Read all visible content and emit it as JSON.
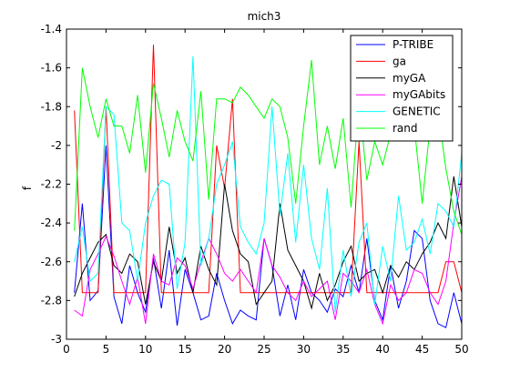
{
  "chart_data": {
    "type": "line",
    "title": "mich3",
    "xlabel": "",
    "ylabel": "f",
    "xlim": [
      0,
      50
    ],
    "ylim": [
      -3,
      -1.4
    ],
    "xticks": [
      0,
      5,
      10,
      15,
      20,
      25,
      30,
      35,
      40,
      45,
      50
    ],
    "yticks": [
      -1.4,
      -1.6,
      -1.8,
      -2,
      -2.2,
      -2.4,
      -2.6,
      -2.8,
      -3
    ],
    "grid": false,
    "legend_position": "top-right",
    "series": [
      {
        "name": "P-TRIBE",
        "color": "#0000ff",
        "x": [
          1,
          2,
          3,
          4,
          5,
          6,
          7,
          8,
          9,
          10,
          11,
          12,
          13,
          14,
          15,
          16,
          17,
          18,
          19,
          20,
          21,
          22,
          23,
          24,
          25,
          26,
          27,
          28,
          29,
          30,
          31,
          32,
          33,
          34,
          35,
          36,
          37,
          38,
          39,
          40,
          41,
          42,
          43,
          44,
          45,
          46,
          47,
          48,
          49,
          50
        ],
        "values": [
          -2.76,
          -2.3,
          -2.8,
          -2.75,
          -2.0,
          -2.78,
          -2.92,
          -2.62,
          -2.76,
          -2.86,
          -2.58,
          -2.84,
          -2.54,
          -2.93,
          -2.64,
          -2.76,
          -2.9,
          -2.88,
          -2.66,
          -2.8,
          -2.92,
          -2.85,
          -2.88,
          -2.9,
          -2.48,
          -2.62,
          -2.88,
          -2.72,
          -2.9,
          -2.64,
          -2.76,
          -2.8,
          -2.86,
          -2.74,
          -2.78,
          -2.62,
          -2.76,
          -2.48,
          -2.8,
          -2.9,
          -2.62,
          -2.84,
          -2.7,
          -2.44,
          -2.48,
          -2.8,
          -2.92,
          -2.94,
          -2.76,
          -2.92
        ]
      },
      {
        "name": "ga",
        "color": "#ff0000",
        "x": [
          1,
          2,
          3,
          4,
          5,
          6,
          7,
          8,
          9,
          10,
          11,
          12,
          13,
          14,
          15,
          16,
          17,
          18,
          19,
          20,
          21,
          22,
          23,
          24,
          25,
          26,
          27,
          28,
          29,
          30,
          31,
          32,
          33,
          34,
          35,
          36,
          37,
          38,
          39,
          40,
          41,
          42,
          43,
          44,
          45,
          46,
          47,
          48,
          49,
          50
        ],
        "values": [
          -1.82,
          -2.76,
          -2.76,
          -2.76,
          -1.8,
          -2.76,
          -2.76,
          -2.76,
          -2.76,
          -2.76,
          -1.48,
          -2.76,
          -2.76,
          -2.76,
          -2.76,
          -2.76,
          -2.76,
          -2.76,
          -2.0,
          -2.22,
          -1.76,
          -2.76,
          -2.76,
          -2.76,
          -2.76,
          -2.76,
          -2.76,
          -2.76,
          -2.76,
          -2.76,
          -2.76,
          -2.76,
          -2.76,
          -2.76,
          -2.76,
          -2.76,
          -1.98,
          -2.76,
          -2.76,
          -2.76,
          -2.76,
          -2.76,
          -2.76,
          -2.76,
          -2.76,
          -2.76,
          -2.76,
          -2.6,
          -2.6,
          -2.76
        ]
      },
      {
        "name": "myGA",
        "color": "#000000",
        "x": [
          1,
          2,
          3,
          4,
          5,
          6,
          7,
          8,
          9,
          10,
          11,
          12,
          13,
          14,
          15,
          16,
          17,
          18,
          19,
          20,
          21,
          22,
          23,
          24,
          25,
          26,
          27,
          28,
          29,
          30,
          31,
          32,
          33,
          34,
          35,
          36,
          37,
          38,
          39,
          40,
          41,
          42,
          43,
          44,
          45,
          46,
          47,
          48,
          49,
          50
        ],
        "values": [
          -2.78,
          -2.66,
          -2.58,
          -2.5,
          -2.46,
          -2.62,
          -2.66,
          -2.56,
          -2.6,
          -2.82,
          -2.6,
          -2.7,
          -2.42,
          -2.66,
          -2.58,
          -2.76,
          -2.52,
          -2.64,
          -2.72,
          -2.2,
          -2.44,
          -2.56,
          -2.6,
          -2.82,
          -2.76,
          -2.7,
          -2.3,
          -2.54,
          -2.62,
          -2.7,
          -2.84,
          -2.66,
          -2.8,
          -2.72,
          -2.6,
          -2.52,
          -2.7,
          -2.66,
          -2.64,
          -2.76,
          -2.62,
          -2.68,
          -2.6,
          -2.64,
          -2.56,
          -2.5,
          -2.4,
          -2.48,
          -2.16,
          -2.42
        ]
      },
      {
        "name": "myGAbits",
        "color": "#ff00ff",
        "x": [
          1,
          2,
          3,
          4,
          5,
          6,
          7,
          8,
          9,
          10,
          11,
          12,
          13,
          14,
          15,
          16,
          17,
          18,
          19,
          20,
          21,
          22,
          23,
          24,
          25,
          26,
          27,
          28,
          29,
          30,
          31,
          32,
          33,
          34,
          35,
          36,
          37,
          38,
          39,
          40,
          41,
          42,
          43,
          44,
          45,
          46,
          47,
          48,
          49,
          50
        ],
        "values": [
          -2.85,
          -2.88,
          -2.64,
          -2.56,
          -2.47,
          -2.57,
          -2.7,
          -2.82,
          -2.68,
          -2.92,
          -2.56,
          -2.7,
          -2.72,
          -2.58,
          -2.62,
          -2.74,
          -2.6,
          -2.48,
          -2.56,
          -2.66,
          -2.7,
          -2.64,
          -2.7,
          -2.76,
          -2.48,
          -2.62,
          -2.68,
          -2.76,
          -2.8,
          -2.7,
          -2.78,
          -2.74,
          -2.7,
          -2.9,
          -2.66,
          -2.7,
          -2.76,
          -2.64,
          -2.82,
          -2.92,
          -2.72,
          -2.8,
          -2.76,
          -2.64,
          -2.66,
          -2.76,
          -2.82,
          -2.7,
          -2.4,
          -2.16
        ]
      },
      {
        "name": "GENETIC",
        "color": "#00ffff",
        "x": [
          1,
          2,
          3,
          4,
          5,
          6,
          7,
          8,
          9,
          10,
          11,
          12,
          13,
          14,
          15,
          16,
          17,
          18,
          19,
          20,
          21,
          22,
          23,
          24,
          25,
          26,
          27,
          28,
          29,
          30,
          31,
          32,
          33,
          34,
          35,
          36,
          37,
          38,
          39,
          40,
          41,
          42,
          43,
          44,
          45,
          46,
          47,
          48,
          49,
          50
        ],
        "values": [
          -2.6,
          -2.42,
          -2.7,
          -2.66,
          -1.8,
          -1.84,
          -2.4,
          -2.44,
          -2.7,
          -2.4,
          -2.26,
          -2.18,
          -2.2,
          -2.74,
          -2.5,
          -1.54,
          -2.62,
          -2.48,
          -2.2,
          -2.1,
          -1.98,
          -2.42,
          -2.5,
          -2.56,
          -2.4,
          -1.8,
          -2.36,
          -2.04,
          -2.5,
          -2.1,
          -2.48,
          -2.64,
          -2.22,
          -2.86,
          -2.54,
          -2.78,
          -2.5,
          -2.4,
          -2.82,
          -2.52,
          -2.7,
          -2.26,
          -2.54,
          -2.5,
          -2.38,
          -2.56,
          -2.3,
          -2.34,
          -2.42,
          -2.04
        ]
      },
      {
        "name": "rand",
        "color": "#00ff00",
        "x": [
          1,
          2,
          3,
          4,
          5,
          6,
          7,
          8,
          9,
          10,
          11,
          12,
          13,
          14,
          15,
          16,
          17,
          18,
          19,
          20,
          21,
          22,
          23,
          24,
          25,
          26,
          27,
          28,
          29,
          30,
          31,
          32,
          33,
          34,
          35,
          36,
          37,
          38,
          39,
          40,
          41,
          42,
          43,
          44,
          45,
          46,
          47,
          48,
          49,
          50
        ],
        "values": [
          -2.44,
          -1.6,
          -1.8,
          -1.96,
          -1.76,
          -1.9,
          -1.9,
          -2.04,
          -1.74,
          -2.14,
          -1.68,
          -1.86,
          -2.06,
          -1.82,
          -1.98,
          -2.08,
          -1.72,
          -2.28,
          -1.76,
          -1.76,
          -1.78,
          -1.7,
          -1.74,
          -1.8,
          -1.86,
          -1.76,
          -1.8,
          -1.96,
          -2.3,
          -1.9,
          -1.56,
          -2.1,
          -1.9,
          -2.12,
          -1.86,
          -2.32,
          -1.76,
          -2.18,
          -1.98,
          -2.1,
          -1.94,
          -1.8,
          -1.96,
          -1.9,
          -2.3,
          -1.9,
          -1.82,
          -2.12,
          -2.34,
          -2.46
        ]
      }
    ]
  }
}
